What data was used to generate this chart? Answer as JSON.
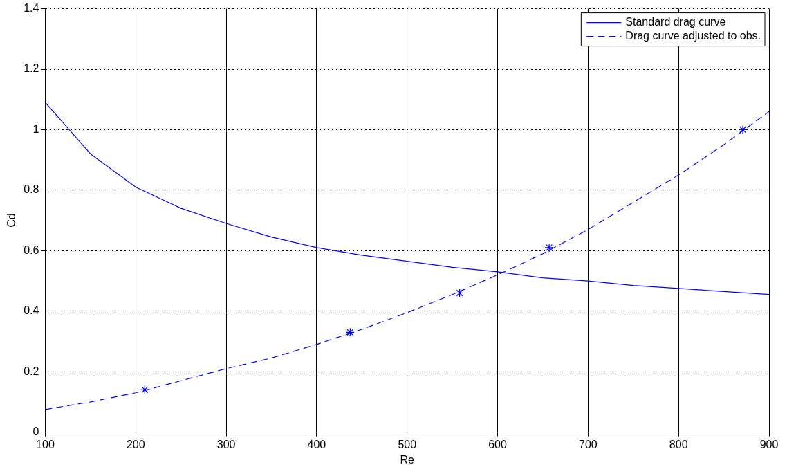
{
  "chart_data": {
    "type": "line",
    "xlabel": "Re",
    "ylabel": "Cd",
    "xlim": [
      100,
      900
    ],
    "xticks": [
      100,
      200,
      300,
      400,
      500,
      600,
      700,
      800,
      900
    ],
    "ylim": [
      0,
      1.4
    ],
    "yticks": [
      0,
      0.2,
      0.4,
      0.6,
      0.8,
      1,
      1.2,
      1.4
    ],
    "grid": true,
    "legend": "top right",
    "series": [
      {
        "name": "Standard drag curve",
        "color": "#0000ff",
        "line_style": "solid",
        "marker": "none",
        "x": [
          100,
          150,
          200,
          250,
          300,
          350,
          400,
          450,
          500,
          550,
          600,
          650,
          700,
          750,
          800,
          850,
          900
        ],
        "values": [
          1.09,
          0.92,
          0.81,
          0.74,
          0.69,
          0.645,
          0.61,
          0.585,
          0.565,
          0.545,
          0.53,
          0.51,
          0.5,
          0.485,
          0.475,
          0.465,
          0.455
        ]
      },
      {
        "name": "Drag curve adjusted to obs.",
        "color": "#0000ff",
        "line_style": "dashed",
        "marker": "none",
        "x": [
          100,
          150,
          200,
          250,
          300,
          350,
          400,
          450,
          500,
          550,
          600,
          650,
          700,
          750,
          800,
          850,
          900
        ],
        "values": [
          0.075,
          0.1,
          0.13,
          0.17,
          0.21,
          0.245,
          0.29,
          0.34,
          0.395,
          0.455,
          0.52,
          0.59,
          0.67,
          0.76,
          0.85,
          0.95,
          1.06
        ]
      },
      {
        "type": "scatter",
        "color": "#0000ff",
        "marker": "cross",
        "x": [
          210,
          437,
          558,
          657,
          871
        ],
        "values": [
          0.14,
          0.33,
          0.46,
          0.61,
          1.0
        ]
      }
    ]
  }
}
